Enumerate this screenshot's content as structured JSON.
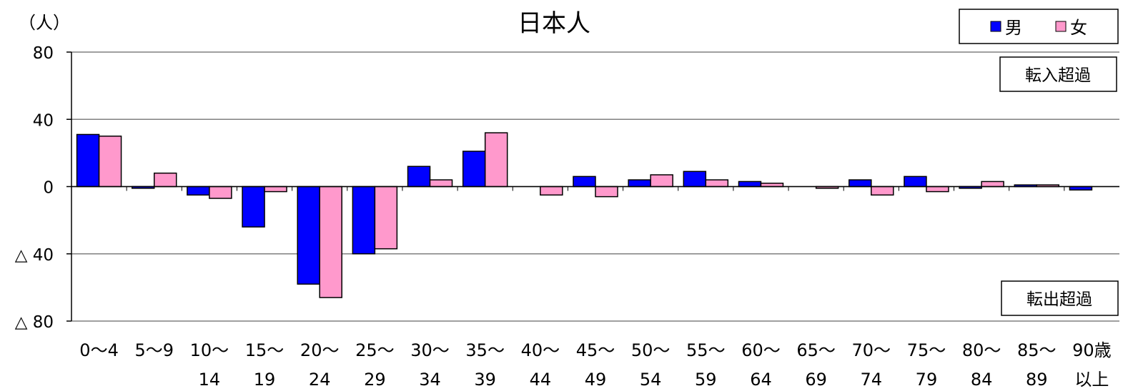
{
  "chart_data": {
    "type": "bar",
    "title": "日本人",
    "ylabel": "（人）",
    "ylim": [
      -80,
      80
    ],
    "yticks": [
      {
        "value": 80,
        "label": "80"
      },
      {
        "value": 40,
        "label": "40"
      },
      {
        "value": 0,
        "label": "0"
      },
      {
        "value": -40,
        "label": "△ 40"
      },
      {
        "value": -80,
        "label": "△ 80"
      }
    ],
    "categories": [
      [
        "0～4"
      ],
      [
        "5～9"
      ],
      [
        "10～",
        "14"
      ],
      [
        "15～",
        "19"
      ],
      [
        "20～",
        "24"
      ],
      [
        "25～",
        "29"
      ],
      [
        "30～",
        "34"
      ],
      [
        "35～",
        "39"
      ],
      [
        "40～",
        "44"
      ],
      [
        "45～",
        "49"
      ],
      [
        "50～",
        "54"
      ],
      [
        "55～",
        "59"
      ],
      [
        "60～",
        "64"
      ],
      [
        "65～",
        "69"
      ],
      [
        "70～",
        "74"
      ],
      [
        "75～",
        "79"
      ],
      [
        "80～",
        "84"
      ],
      [
        "85～",
        "89"
      ],
      [
        "90歳",
        "以上"
      ]
    ],
    "series": [
      {
        "name": "男",
        "color": "#0000ff",
        "values": [
          31,
          -1,
          -5,
          -24,
          -58,
          -40,
          12,
          21,
          0,
          6,
          4,
          9,
          3,
          0,
          4,
          6,
          -1,
          1,
          -2
        ]
      },
      {
        "name": "女",
        "color": "#ff99cc",
        "values": [
          30,
          8,
          -7,
          -3,
          -66,
          -37,
          4,
          32,
          -5,
          -6,
          7,
          4,
          2,
          -1,
          -5,
          -3,
          3,
          1,
          0
        ]
      }
    ],
    "annotations": [
      "転入超過",
      "転出超過"
    ],
    "legend_position": "top-right",
    "grid": true
  }
}
